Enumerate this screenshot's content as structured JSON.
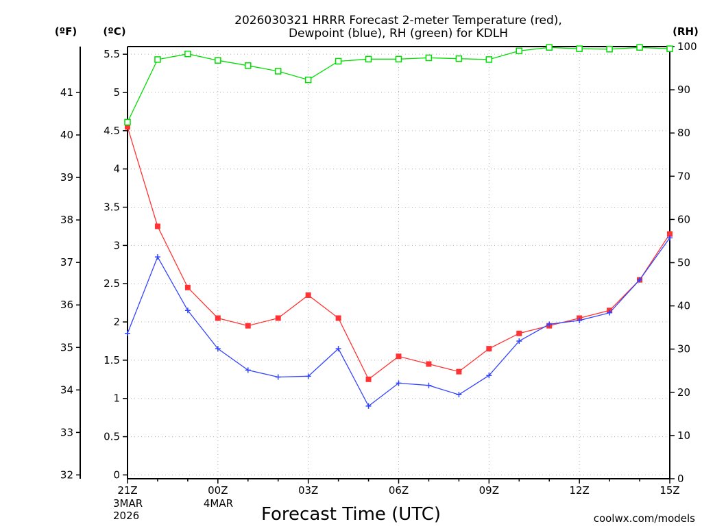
{
  "chart_data": {
    "type": "line",
    "title_lines": [
      "2026030321 HRRR Forecast 2-meter Temperature (red),",
      "Dewpoint (blue), RH (green) for KDLH"
    ],
    "xlabel": "Forecast Time (UTC)",
    "watermark": "coolwx.com/models",
    "unit_labels": {
      "fahrenheit": "(ºF)",
      "celsius": "(ºC)",
      "rh": "(RH)"
    },
    "x": [
      0,
      1,
      2,
      3,
      4,
      5,
      6,
      7,
      8,
      9,
      10,
      11,
      12,
      13,
      14,
      15,
      16,
      17,
      18
    ],
    "xlim": [
      0,
      18
    ],
    "x_ticks": [
      {
        "x": 0,
        "label": "21Z",
        "sub": [
          "3MAR",
          "2026"
        ]
      },
      {
        "x": 3,
        "label": "00Z",
        "sub": [
          "4MAR"
        ]
      },
      {
        "x": 6,
        "label": "03Z",
        "sub": []
      },
      {
        "x": 9,
        "label": "06Z",
        "sub": []
      },
      {
        "x": 12,
        "label": "09Z",
        "sub": []
      },
      {
        "x": 15,
        "label": "12Z",
        "sub": []
      },
      {
        "x": 18,
        "label": "15Z",
        "sub": []
      }
    ],
    "celsius_axis": {
      "lim": [
        -0.05,
        5.6
      ],
      "ticks": [
        0,
        0.5,
        1,
        1.5,
        2,
        2.5,
        3,
        3.5,
        4,
        4.5,
        5,
        5.5
      ],
      "tick_labels": [
        "0",
        "0.5",
        "1",
        "1.5",
        "2",
        "2.5",
        "3",
        "3.5",
        "4",
        "4.5",
        "5",
        "5.5"
      ]
    },
    "fahrenheit_axis": {
      "ticks": [
        32,
        33,
        34,
        35,
        36,
        37,
        38,
        39,
        40,
        41
      ],
      "tick_labels": [
        "32",
        "33",
        "34",
        "35",
        "36",
        "37",
        "38",
        "39",
        "40",
        "41"
      ]
    },
    "rh_axis": {
      "lim": [
        0,
        100
      ],
      "ticks": [
        0,
        10,
        20,
        30,
        40,
        50,
        60,
        70,
        80,
        90,
        100
      ],
      "tick_labels": [
        "0",
        "10",
        "20",
        "30",
        "40",
        "50",
        "60",
        "70",
        "80",
        "90",
        "100"
      ]
    },
    "series": [
      {
        "name": "2-meter Temperature",
        "axis": "celsius",
        "color": "#ff3333",
        "marker": "filled-square",
        "values": [
          4.55,
          3.25,
          2.45,
          2.05,
          1.95,
          2.05,
          2.35,
          2.05,
          1.25,
          1.55,
          1.45,
          1.35,
          1.65,
          1.85,
          1.95,
          2.05,
          2.15,
          2.55,
          3.15
        ]
      },
      {
        "name": "Dewpoint",
        "axis": "celsius",
        "color": "#3344ff",
        "marker": "plus",
        "values": [
          1.85,
          2.85,
          2.15,
          1.65,
          1.37,
          1.28,
          1.29,
          1.65,
          0.9,
          1.2,
          1.17,
          1.05,
          1.3,
          1.75,
          1.97,
          2.02,
          2.12,
          2.55,
          3.1
        ]
      },
      {
        "name": "RH",
        "axis": "rh",
        "color": "#00dd00",
        "marker": "open-square",
        "values": [
          82.5,
          97.0,
          98.3,
          96.8,
          95.6,
          94.3,
          92.3,
          96.6,
          97.1,
          97.1,
          97.4,
          97.2,
          97.0,
          99.0,
          99.8,
          99.5,
          99.4,
          99.8,
          99.5
        ]
      }
    ]
  },
  "colors": {
    "axis": "#000000",
    "grid": "#b0b0b0",
    "background": "#ffffff",
    "watermark": "#cc0000"
  }
}
